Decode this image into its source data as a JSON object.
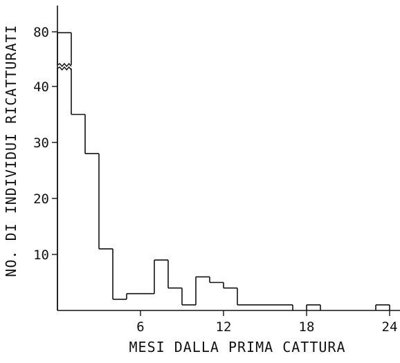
{
  "chart_data": {
    "type": "histogram",
    "title": "",
    "xlabel": "MESI DALLA PRIMA CATTURA",
    "ylabel": "NO. DI INDIVIDUI RICATTURATI",
    "bin_width_months": 1,
    "x_range": [
      0,
      25
    ],
    "x_ticks": [
      6,
      12,
      18,
      24
    ],
    "y_axis_broken": true,
    "y_ticks": [
      10,
      20,
      30,
      40,
      80
    ],
    "grid": false,
    "legend": "none",
    "bins": [
      {
        "x_start": 0,
        "x_end": 1,
        "count": 79
      },
      {
        "x_start": 1,
        "x_end": 2,
        "count": 35
      },
      {
        "x_start": 2,
        "x_end": 3,
        "count": 28
      },
      {
        "x_start": 3,
        "x_end": 4,
        "count": 11
      },
      {
        "x_start": 4,
        "x_end": 5,
        "count": 2
      },
      {
        "x_start": 5,
        "x_end": 6,
        "count": 3
      },
      {
        "x_start": 6,
        "x_end": 7,
        "count": 3
      },
      {
        "x_start": 7,
        "x_end": 8,
        "count": 9
      },
      {
        "x_start": 8,
        "x_end": 9,
        "count": 4
      },
      {
        "x_start": 9,
        "x_end": 10,
        "count": 1
      },
      {
        "x_start": 10,
        "x_end": 11,
        "count": 6
      },
      {
        "x_start": 11,
        "x_end": 12,
        "count": 5
      },
      {
        "x_start": 12,
        "x_end": 13,
        "count": 4
      },
      {
        "x_start": 13,
        "x_end": 14,
        "count": 1
      },
      {
        "x_start": 14,
        "x_end": 15,
        "count": 1
      },
      {
        "x_start": 15,
        "x_end": 16,
        "count": 1
      },
      {
        "x_start": 16,
        "x_end": 17,
        "count": 1
      },
      {
        "x_start": 17,
        "x_end": 18,
        "count": 0
      },
      {
        "x_start": 18,
        "x_end": 19,
        "count": 1
      },
      {
        "x_start": 19,
        "x_end": 20,
        "count": 0
      },
      {
        "x_start": 20,
        "x_end": 21,
        "count": 0
      },
      {
        "x_start": 21,
        "x_end": 22,
        "count": 0
      },
      {
        "x_start": 22,
        "x_end": 23,
        "count": 0
      },
      {
        "x_start": 23,
        "x_end": 24,
        "count": 1
      }
    ],
    "colors": {
      "line": "#111111",
      "background": "#ffffff"
    }
  }
}
